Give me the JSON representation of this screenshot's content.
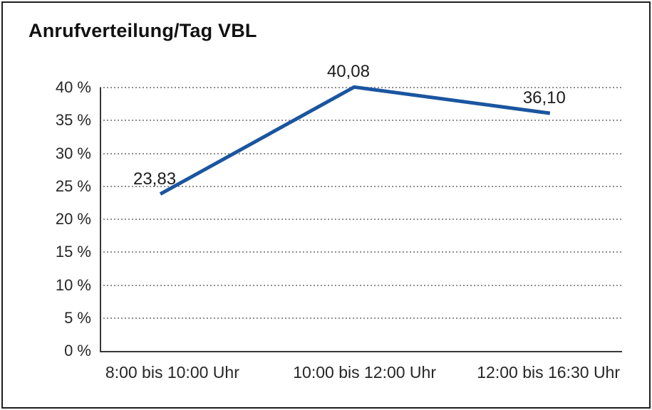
{
  "chart_data": {
    "type": "line",
    "title": "Anrufverteilung/Tag VBL",
    "categories": [
      "8:00 bis 10:00 Uhr",
      "10:00 bis 12:00 Uhr",
      "12:00 bis 16:30 Uhr"
    ],
    "series": [
      {
        "name": "Anrufverteilung/Tag VBL",
        "values": [
          23.83,
          40.08,
          36.1
        ],
        "point_labels": [
          "23,83",
          "40,08",
          "36,10"
        ],
        "color": "#1a55a0"
      }
    ],
    "xlabel": "",
    "ylabel": "",
    "ylim": [
      0,
      40
    ],
    "ytick_values": [
      0,
      5,
      10,
      15,
      20,
      25,
      30,
      35,
      40
    ],
    "ytick_labels": [
      "0 %",
      "5 %",
      "10 %",
      "15 %",
      "20 %",
      "25 %",
      "30 %",
      "35 %",
      "40 %"
    ],
    "grid": "horizontal dotted",
    "legend_position": "none",
    "colors": {
      "line": "#1a55a0",
      "axis": "#383838",
      "gridline": "#8f8f8f",
      "border": "#1f1f1f",
      "text": "#1c1c1c",
      "background": "#ffffff"
    }
  }
}
